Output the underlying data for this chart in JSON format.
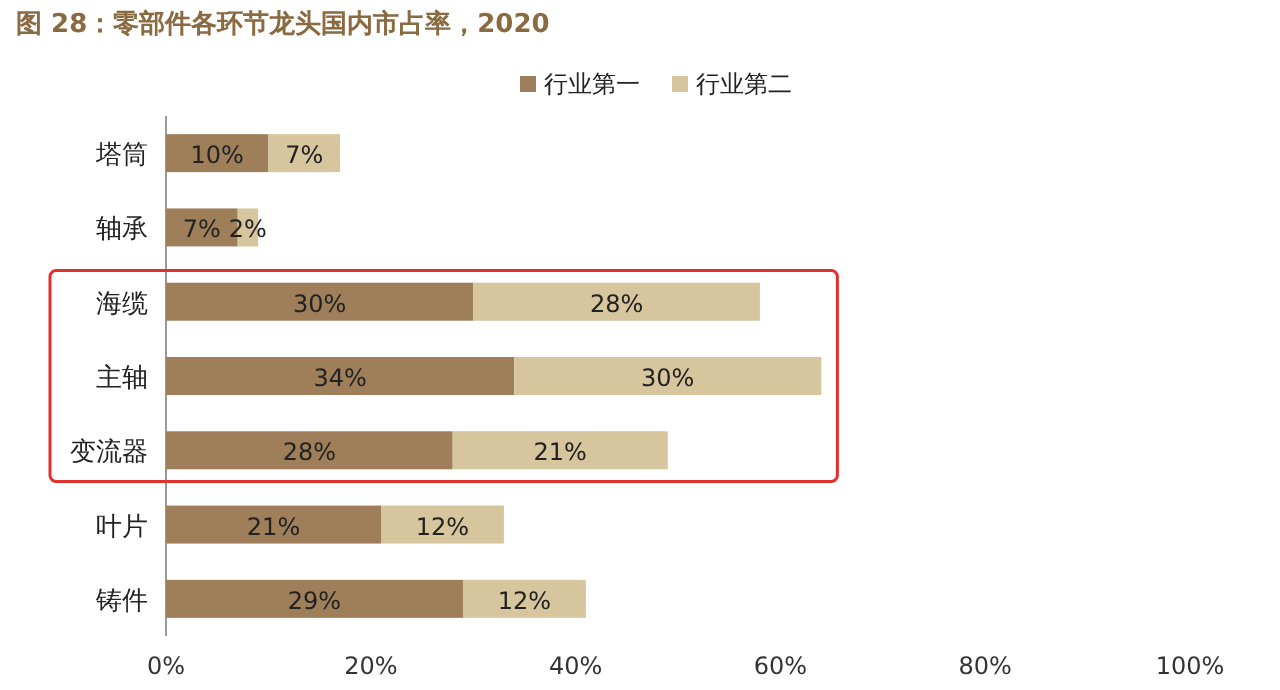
{
  "chart_data": {
    "type": "bar",
    "orientation": "horizontal",
    "stacked": true,
    "title": "图 28：零部件各环节龙头国内市占率，2020",
    "categories": [
      "塔筒",
      "轴承",
      "海缆",
      "主轴",
      "变流器",
      "叶片",
      "铸件"
    ],
    "series": [
      {
        "name": "行业第一",
        "color": "#9e7f5a",
        "values": [
          10,
          7,
          30,
          34,
          28,
          21,
          29
        ],
        "value_labels": [
          "10%",
          "7%",
          "30%",
          "34%",
          "28%",
          "21%",
          "29%"
        ]
      },
      {
        "name": "行业第二",
        "color": "#d6c59d",
        "values": [
          7,
          2,
          28,
          30,
          21,
          12,
          12
        ],
        "value_labels": [
          "7%",
          "2%",
          "28%",
          "30%",
          "21%",
          "12%",
          "12%"
        ]
      }
    ],
    "xlim": [
      0,
      100
    ],
    "xticks": [
      {
        "value": 0,
        "label": "0%"
      },
      {
        "value": 20,
        "label": "20%"
      },
      {
        "value": 40,
        "label": "40%"
      },
      {
        "value": 60,
        "label": "60%"
      },
      {
        "value": 80,
        "label": "80%"
      },
      {
        "value": 100,
        "label": "100%"
      }
    ],
    "legend": "top",
    "grid": false
  }
}
